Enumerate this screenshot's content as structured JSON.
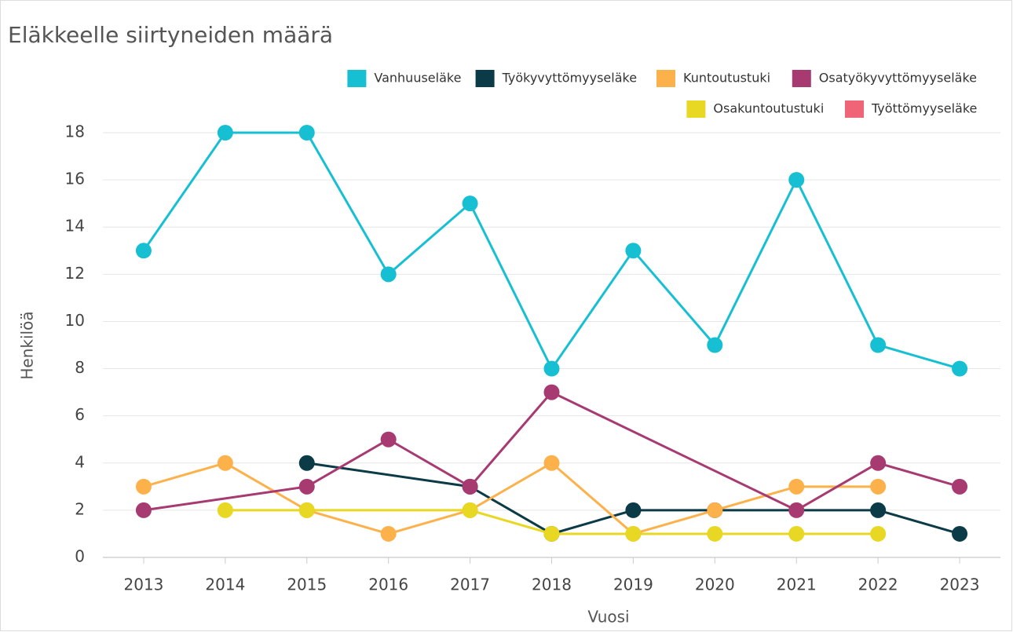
{
  "chart_data": {
    "type": "line",
    "title": "Eläkkeelle siirtyneiden määrä",
    "x_label": "Vuosi",
    "y_label": "Henkilöä",
    "xlim": [
      2012.5,
      2023.5
    ],
    "xticks": [
      2013,
      2014,
      2015,
      2016,
      2017,
      2018,
      2019,
      2020,
      2021,
      2022,
      2023
    ],
    "ylim": [
      0,
      18
    ],
    "yticks": [
      0,
      2,
      4,
      6,
      8,
      10,
      12,
      14,
      16,
      18
    ],
    "grid": true,
    "legend": "top-right",
    "series": [
      {
        "name": "Vanhuuseläke",
        "color": "#17bfd3",
        "x": [
          2013,
          2014,
          2015,
          2016,
          2017,
          2018,
          2019,
          2020,
          2021,
          2022,
          2023
        ],
        "values": [
          13,
          18,
          18,
          12,
          15,
          8,
          13,
          9,
          16,
          9,
          8
        ]
      },
      {
        "name": "Työkyvyttömyyseläke",
        "color": "#0b3b47",
        "x": [
          2015,
          2017,
          2018,
          2019,
          2020,
          2022,
          2023
        ],
        "values": [
          4,
          3,
          1,
          2,
          2,
          2,
          1
        ]
      },
      {
        "name": "Kuntoutustuki",
        "color": "#fdb14a",
        "x": [
          2013,
          2014,
          2015,
          2016,
          2017,
          2018,
          2019,
          2020,
          2021,
          2022
        ],
        "values": [
          3,
          4,
          2,
          1,
          2,
          4,
          1,
          2,
          3,
          3
        ]
      },
      {
        "name": "Osatyökyvyttömyyseläke",
        "color": "#a83a72",
        "x": [
          2013,
          2015,
          2016,
          2017,
          2018,
          2021,
          2022,
          2023
        ],
        "values": [
          2,
          3,
          5,
          3,
          7,
          2,
          4,
          3
        ]
      },
      {
        "name": "Osakuntoutustuki",
        "color": "#e8d723",
        "x": [
          2014,
          2015,
          2017,
          2018,
          2019,
          2020,
          2021,
          2022
        ],
        "values": [
          2,
          2,
          2,
          1,
          1,
          1,
          1,
          1
        ]
      },
      {
        "name": "Työttömyyseläke",
        "color": "#f06478",
        "x": [],
        "values": []
      }
    ]
  }
}
